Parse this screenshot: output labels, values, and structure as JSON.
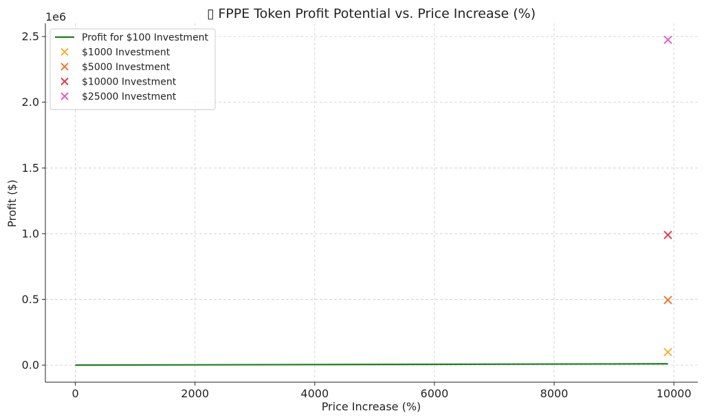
{
  "chart_data": {
    "type": "line",
    "title": "▯ FPPE Token Profit Potential vs. Price Increase (%)",
    "xlabel": "Price Increase (%)",
    "ylabel": "Profit ($)",
    "y_multiplier": "1e6",
    "xlim": [
      -500,
      10400
    ],
    "ylim": [
      -0.13,
      2.6
    ],
    "x_ticks": [
      0,
      2000,
      4000,
      6000,
      8000,
      10000
    ],
    "x_tick_labels": [
      "0",
      "2000",
      "4000",
      "6000",
      "8000",
      "10000"
    ],
    "y_ticks": [
      0.0,
      0.5,
      1.0,
      1.5,
      2.0,
      2.5
    ],
    "y_tick_labels": [
      "0.0",
      "0.5",
      "1.0",
      "1.5",
      "2.0",
      "2.5"
    ],
    "grid": true,
    "legend_position": "top-left",
    "line_series": [
      {
        "name": "Profit for $100 Investment",
        "color": "#1a7f1a",
        "x": [
          0,
          9900
        ],
        "y": [
          0.0,
          0.0099
        ]
      }
    ],
    "scatter_series": [
      {
        "name": "$1000 Investment",
        "color": "#f5b22e",
        "marker": "x",
        "x": [
          9900
        ],
        "y": [
          0.099
        ]
      },
      {
        "name": "$5000 Investment",
        "color": "#ec7b2c",
        "marker": "x",
        "x": [
          9900
        ],
        "y": [
          0.495
        ]
      },
      {
        "name": "$10000 Investment",
        "color": "#e03c50",
        "marker": "x",
        "x": [
          9900
        ],
        "y": [
          0.99
        ]
      },
      {
        "name": "$25000 Investment",
        "color": "#e85bc6",
        "marker": "x",
        "x": [
          9900
        ],
        "y": [
          2.475
        ]
      }
    ]
  }
}
